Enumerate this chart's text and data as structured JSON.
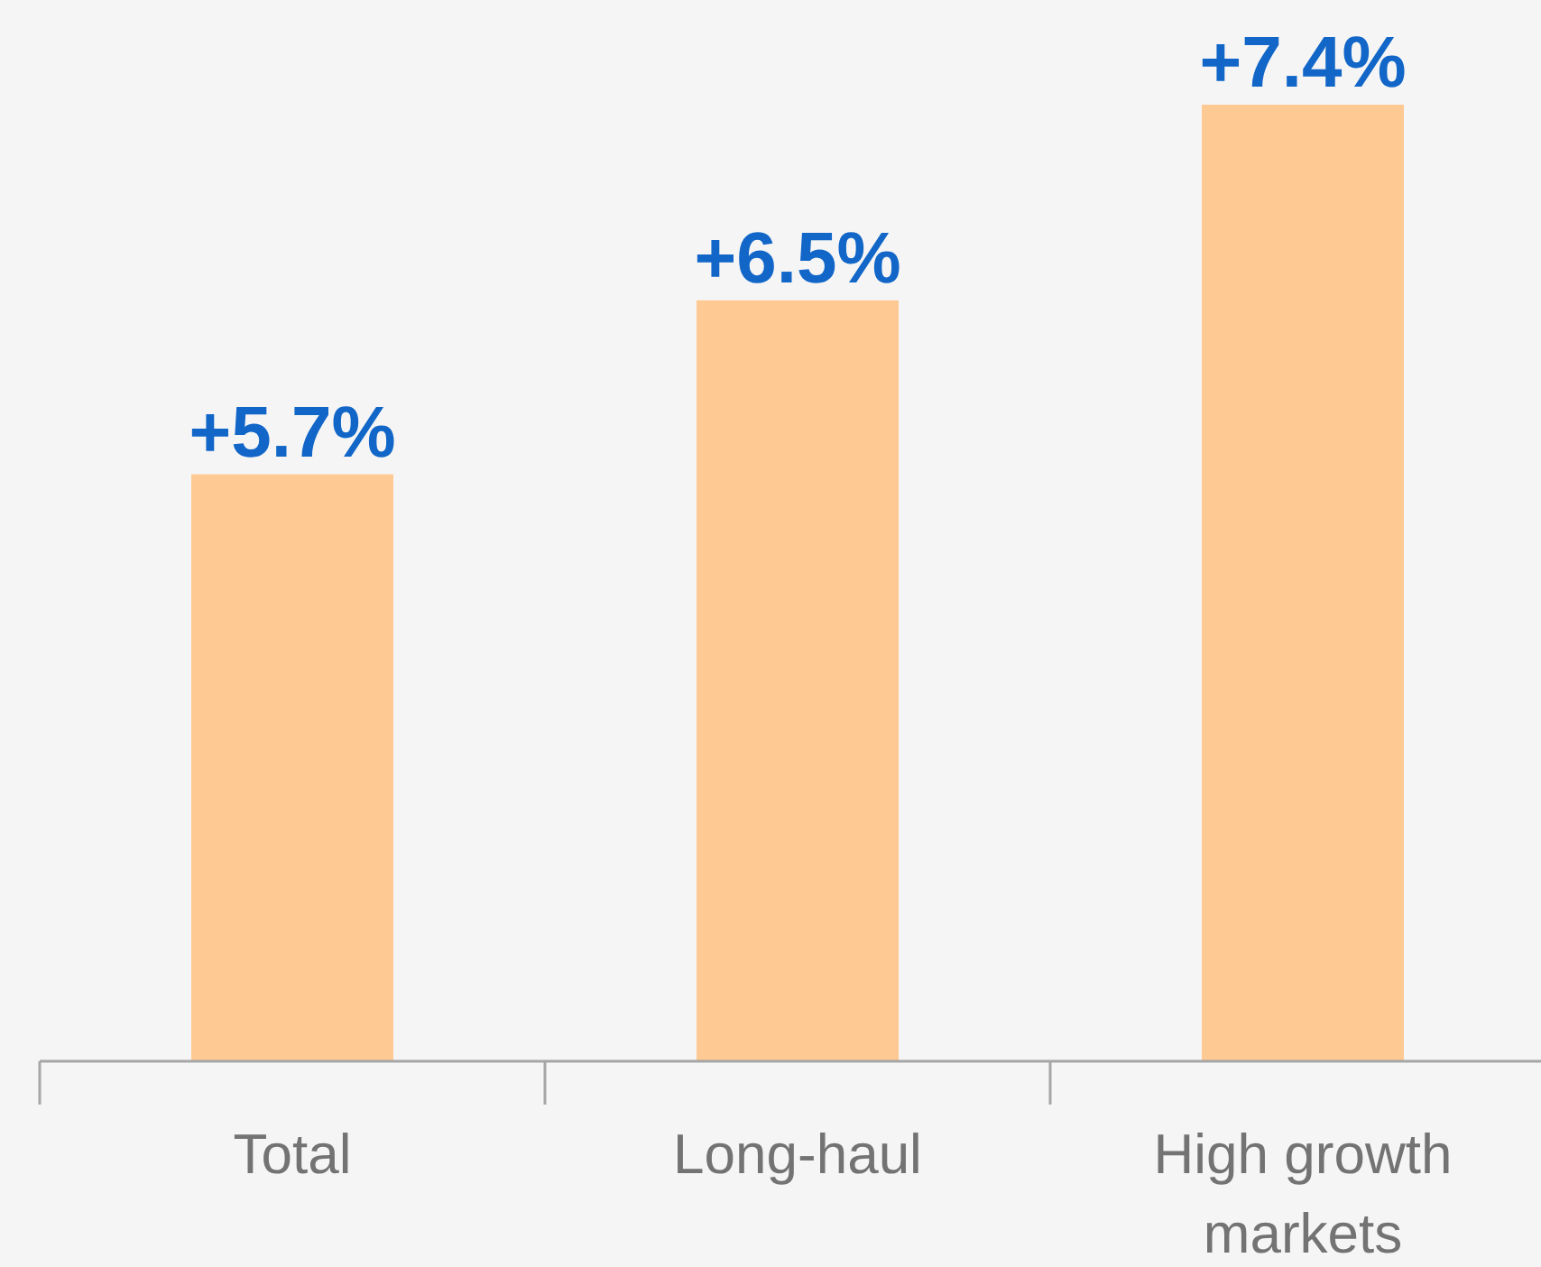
{
  "chart_data": {
    "type": "bar",
    "categories": [
      "Total",
      "Long-haul",
      "High growth markets"
    ],
    "values": [
      5.7,
      6.5,
      7.4
    ],
    "color": "#ffc994",
    "value_labels": [
      "+5.7%",
      "+6.5%",
      "+7.4%"
    ],
    "ylim": [
      3,
      7.4
    ],
    "tick_labels": "x"
  }
}
